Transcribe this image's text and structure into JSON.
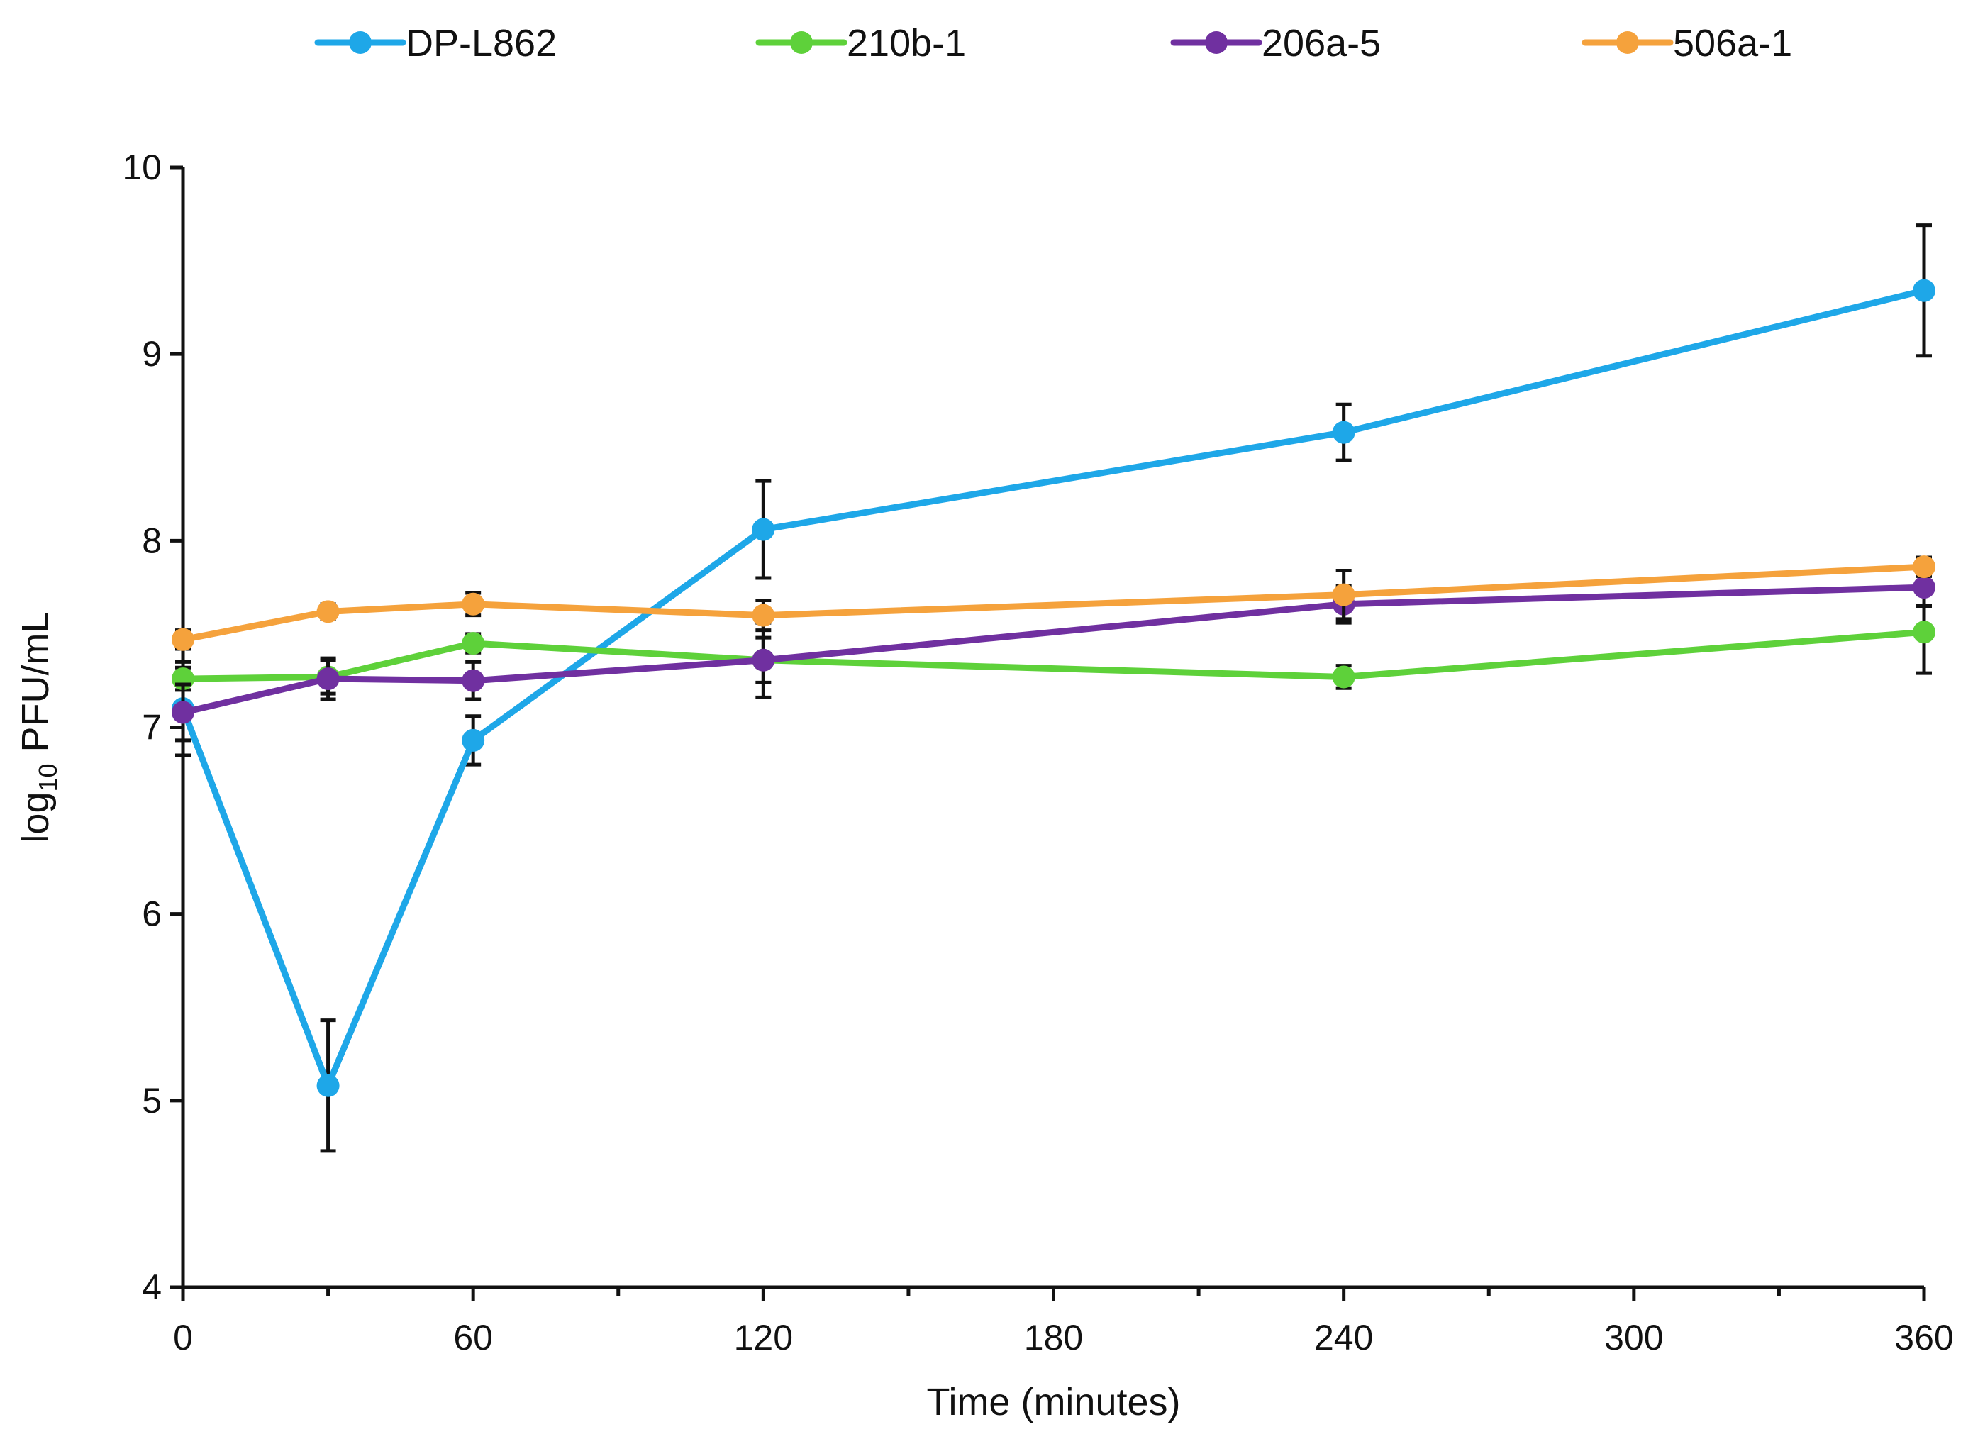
{
  "chart_data": {
    "type": "line",
    "title": "",
    "xlabel": "Time (minutes)",
    "ylabel_prefix": "log",
    "ylabel_subscript": "10",
    "ylabel_suffix": "PFU/mL",
    "x_ticks": [
      0,
      60,
      120,
      180,
      240,
      300,
      360
    ],
    "y_ticks": [
      4,
      5,
      6,
      7,
      8,
      9,
      10
    ],
    "xlim": [
      0,
      360
    ],
    "ylim": [
      4,
      10
    ],
    "grid": false,
    "legend_position": "top",
    "series": [
      {
        "name": "DP-L862",
        "color": "#1ea7e8",
        "x": [
          0,
          30,
          60,
          120,
          240,
          360
        ],
        "y": [
          7.1,
          5.08,
          6.93,
          8.06,
          8.58,
          9.34
        ],
        "error": [
          0.25,
          0.35,
          0.13,
          0.26,
          0.15,
          0.35
        ]
      },
      {
        "name": "210b-1",
        "color": "#5ed13a",
        "x": [
          0,
          30,
          60,
          120,
          240,
          360
        ],
        "y": [
          7.26,
          7.27,
          7.45,
          7.36,
          7.27,
          7.51
        ],
        "error": [
          0.06,
          0.09,
          0.05,
          0.2,
          0.06,
          0.22
        ]
      },
      {
        "name": "206a-5",
        "color": "#7030a0",
        "x": [
          0,
          30,
          60,
          120,
          240,
          360
        ],
        "y": [
          7.08,
          7.26,
          7.25,
          7.36,
          7.66,
          7.75
        ],
        "error": [
          0.15,
          0.11,
          0.1,
          0.12,
          0.1,
          0.1
        ]
      },
      {
        "name": "506a-1",
        "color": "#f5a23c",
        "x": [
          0,
          30,
          60,
          120,
          240,
          360
        ],
        "y": [
          7.47,
          7.62,
          7.66,
          7.6,
          7.71,
          7.86
        ],
        "error": [
          0.05,
          0.04,
          0.06,
          0.08,
          0.13,
          0.05
        ]
      }
    ]
  }
}
